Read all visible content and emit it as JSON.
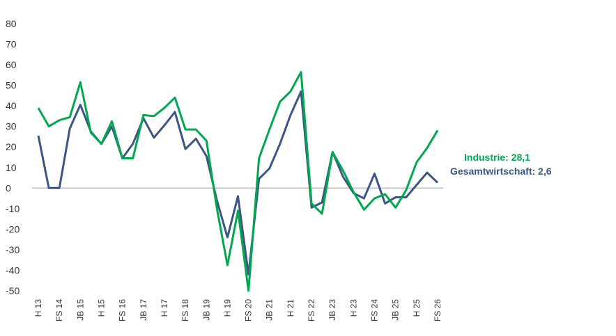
{
  "chart_data": {
    "type": "line",
    "categories": [
      "H 13",
      "",
      "FS 14",
      "",
      "JB 15",
      "",
      "H 15",
      "",
      "FS 16",
      "",
      "JB 17",
      "",
      "H 17",
      "",
      "FS 18",
      "",
      "JB 19",
      "",
      "H 19",
      "",
      "FS 20",
      "",
      "JB 21",
      "",
      "H 21",
      "",
      "FS 22",
      "",
      "JB 23",
      "",
      "H 23",
      "",
      "FS 24",
      "",
      "JB 25",
      "",
      "H 25",
      "",
      "FS 26"
    ],
    "ylim": [
      -50,
      80
    ],
    "yticks": [
      80,
      70,
      60,
      50,
      40,
      30,
      20,
      10,
      0,
      -10,
      -20,
      -30,
      -40,
      -50
    ],
    "series": [
      {
        "name": "Industrie",
        "color": "#00a84f",
        "values": [
          39,
          30,
          33,
          34.5,
          51.5,
          27,
          21.5,
          32.5,
          14.5,
          14.5,
          35.5,
          35,
          39,
          44,
          28.5,
          28.5,
          23,
          -10,
          -37.5,
          -11,
          -50,
          14.5,
          28.5,
          42,
          47,
          56.5,
          -7.5,
          -12.5,
          17.5,
          8.5,
          -2,
          -10.5,
          -5,
          -3,
          -9.5,
          -1,
          12.5,
          19.5,
          28.1
        ]
      },
      {
        "name": "Gesamtwirtschaft",
        "color": "#3b5585",
        "values": [
          25.5,
          0,
          0,
          29,
          40.5,
          27.5,
          21.5,
          30,
          14.5,
          21.5,
          34,
          24.5,
          30.5,
          37,
          19,
          24,
          15.5,
          -6,
          -24,
          -4,
          -42,
          4.5,
          9.5,
          21.5,
          35.5,
          47,
          -9.5,
          -7,
          17.5,
          5.5,
          -2.5,
          -5,
          7,
          -7.5,
          -4.5,
          -4.5,
          1.5,
          7.5,
          2.6
        ]
      }
    ],
    "legend": [
      {
        "label": "Industrie: 28,1",
        "color": "#00a84f"
      },
      {
        "label": "Gesamtwirtschaft: 2,6",
        "color": "#3b5585"
      }
    ],
    "grid": false
  }
}
